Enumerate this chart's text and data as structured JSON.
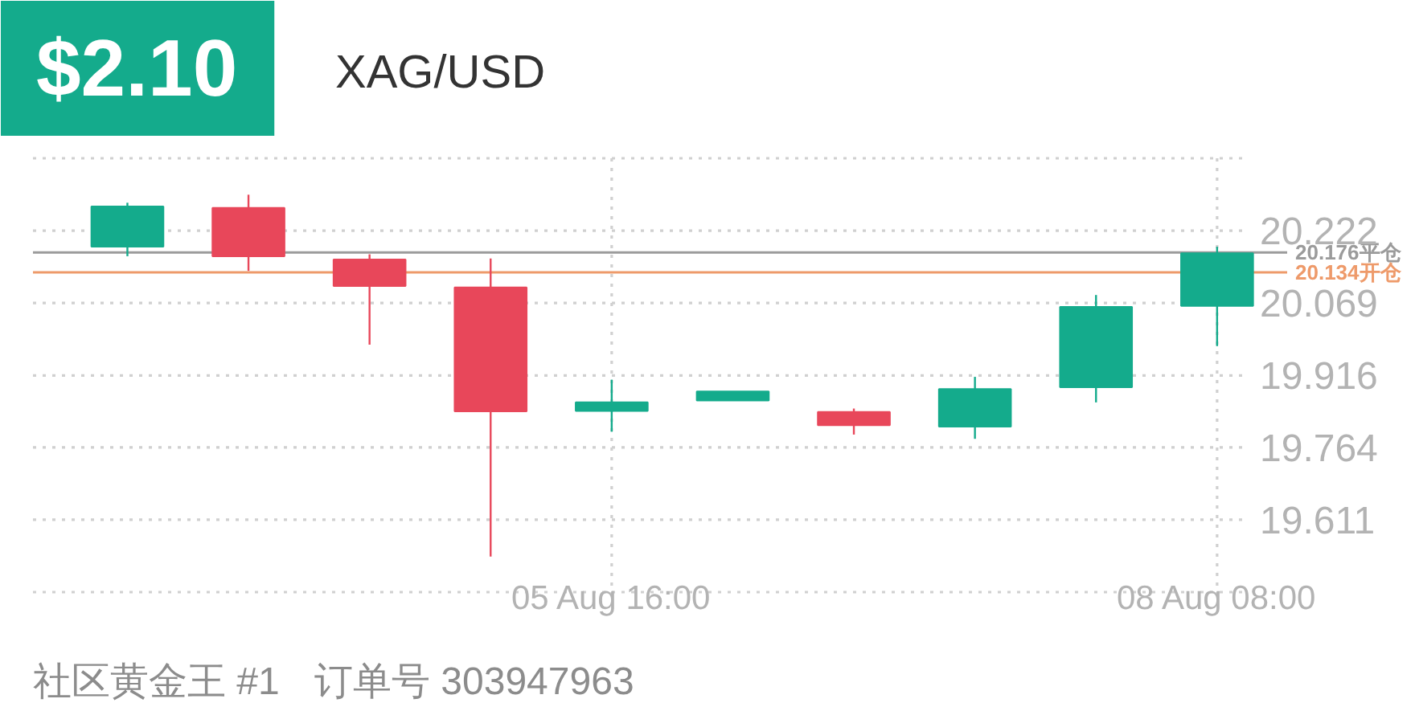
{
  "chart_data": {
    "type": "candlestick",
    "title": "XAG/USD",
    "annotations": [
      "$2.10",
      "社区黄金王 #1",
      "订单号 303947963"
    ],
    "categories": [
      null,
      null,
      null,
      null,
      "05 Aug 16:00",
      null,
      null,
      null,
      null,
      "08 Aug 08:00"
    ],
    "ohlc": [
      [
        20.188,
        20.281,
        20.168,
        20.273
      ],
      [
        20.27,
        20.298,
        20.137,
        20.168
      ],
      [
        20.161,
        20.172,
        19.981,
        20.105
      ],
      [
        20.102,
        20.163,
        19.533,
        19.84
      ],
      [
        19.841,
        19.907,
        19.797,
        19.859
      ],
      [
        19.863,
        19.882,
        19.863,
        19.882
      ],
      [
        19.839,
        19.846,
        19.791,
        19.811
      ],
      [
        19.808,
        19.913,
        19.782,
        19.887
      ],
      [
        19.891,
        20.086,
        19.859,
        20.061
      ],
      [
        20.063,
        20.188,
        19.978,
        20.174
      ]
    ],
    "colors": [
      "#14ab8c",
      "#e8475a",
      "#e8475a",
      "#e8475a",
      "#14ab8c",
      "#14ab8c",
      "#e8475a",
      "#14ab8c",
      "#14ab8c",
      "#14ab8c"
    ],
    "ylim": [
      19.458,
      20.375
    ],
    "yticks": [
      {
        "value": 19.458,
        "label": null
      },
      19.611,
      19.764,
      19.916,
      20.069,
      20.222,
      {
        "value": 20.375,
        "label": null
      }
    ],
    "ref_lines": [
      {
        "axis": "y",
        "value": 20.176,
        "label": "20.176平仓",
        "color": "#9b9b9b"
      },
      {
        "axis": "y",
        "value": 20.134,
        "label": "20.134开仓",
        "color": "#ee9a6a"
      }
    ],
    "grid": true
  }
}
